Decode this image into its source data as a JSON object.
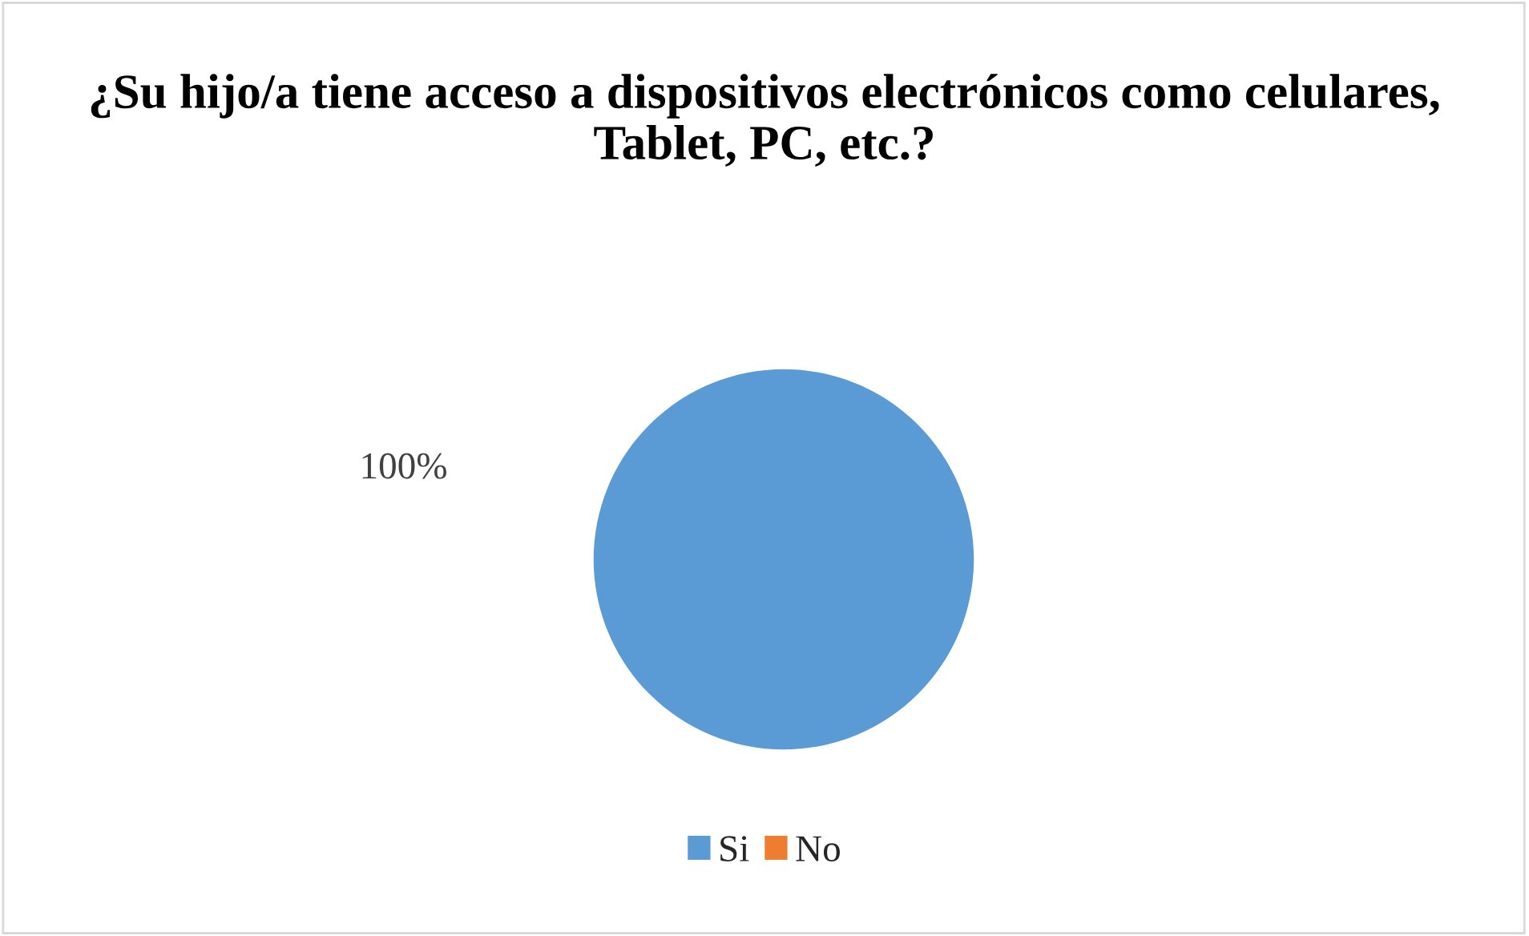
{
  "chart_data": {
    "type": "pie",
    "title": "¿Su hijo/a tiene acceso a dispositivos electrónicos como celulares, Tablet, PC, etc.?",
    "categories": [
      "Si",
      "No"
    ],
    "values": [
      100,
      0
    ],
    "colors": [
      "#5b9bd5",
      "#ed7d31"
    ],
    "value_labels": [
      "100%",
      null
    ],
    "legend": "bottom"
  }
}
